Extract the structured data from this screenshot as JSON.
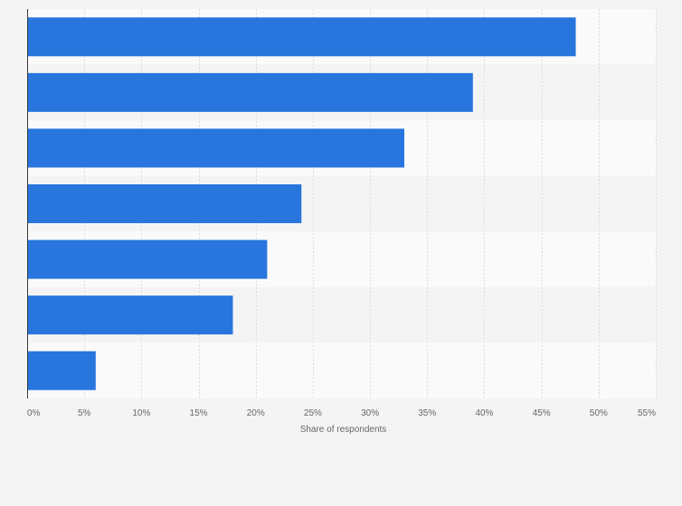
{
  "chart_data": {
    "type": "bar",
    "orientation": "horizontal",
    "title": "",
    "xlabel": "Share of respondents",
    "ylabel": "",
    "xlim": [
      0,
      55
    ],
    "x_ticks": [
      0,
      5,
      10,
      15,
      20,
      25,
      30,
      35,
      40,
      45,
      50,
      55
    ],
    "x_tick_labels": [
      "0%",
      "5%",
      "10%",
      "15%",
      "20%",
      "25%",
      "30%",
      "35%",
      "40%",
      "45%",
      "50%",
      "55%"
    ],
    "categories": [
      "",
      "",
      "",
      "",
      "",
      "",
      ""
    ],
    "values": [
      48,
      39,
      33,
      24,
      21,
      18,
      6
    ],
    "unit": "%",
    "grid": true,
    "colors": {
      "bar": "#2876dd",
      "background": "#f4f4f5",
      "band_light": "#fafafb",
      "band_dark": "#f4f4f5",
      "grid": "#dcdcdc",
      "axis": "#3a3a3a",
      "text": "#666666"
    }
  }
}
